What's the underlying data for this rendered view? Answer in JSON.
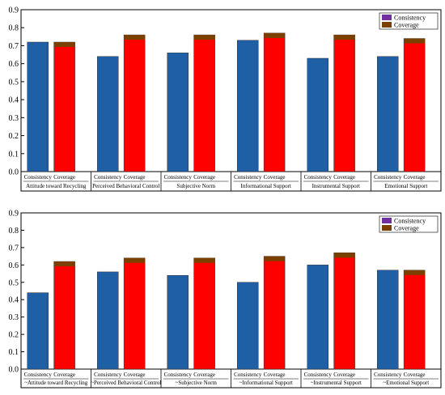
{
  "chart_data": [
    {
      "type": "bar",
      "title": "",
      "xlabel": "",
      "ylabel": "",
      "ylim": [
        0,
        0.9
      ],
      "yticks": [
        "0.0",
        "0.1",
        "0.2",
        "0.3",
        "0.4",
        "0.5",
        "0.6",
        "0.7",
        "0.8",
        "0.9"
      ],
      "grid": false,
      "legend_position": "top-right",
      "groups": [
        "Attitude toward Recycling",
        "Perceived Behavioral Control",
        "Subjective Norm",
        "Informational Support",
        "Instrumental Support",
        "Emotional Support"
      ],
      "bar_labels": [
        "Consistency",
        "Coverage"
      ],
      "series": [
        {
          "name": "Consistency",
          "color": "#1f5fa6",
          "values": [
            0.72,
            0.64,
            0.66,
            0.73,
            0.63,
            0.64
          ]
        },
        {
          "name": "Coverage",
          "color": "#ff0000",
          "values": [
            0.72,
            0.76,
            0.76,
            0.77,
            0.76,
            0.74
          ]
        }
      ],
      "legend": [
        {
          "name": "Consistency",
          "color": "#7030a0"
        },
        {
          "name": "Coverage",
          "color": "#7b3f00"
        }
      ]
    },
    {
      "type": "bar",
      "title": "",
      "xlabel": "",
      "ylabel": "",
      "ylim": [
        0,
        0.9
      ],
      "yticks": [
        "0.0",
        "0.1",
        "0.2",
        "0.3",
        "0.4",
        "0.5",
        "0.6",
        "0.7",
        "0.8",
        "0.9"
      ],
      "grid": false,
      "legend_position": "top-right",
      "groups": [
        "~Attitude toward Recycling",
        "~Perceived Behavioral Control",
        "~Subjective Norm",
        "~Informational Support",
        "~Instrumental Support",
        "~Emotional Support"
      ],
      "bar_labels": [
        "Consistency",
        "Coverage"
      ],
      "series": [
        {
          "name": "Consistency",
          "color": "#1f5fa6",
          "values": [
            0.44,
            0.56,
            0.54,
            0.5,
            0.6,
            0.57
          ]
        },
        {
          "name": "Coverage",
          "color": "#ff0000",
          "values": [
            0.62,
            0.64,
            0.64,
            0.65,
            0.67,
            0.57
          ]
        }
      ],
      "legend": [
        {
          "name": "Consistency",
          "color": "#7030a0"
        },
        {
          "name": "Coverage",
          "color": "#7b3f00"
        }
      ]
    }
  ]
}
